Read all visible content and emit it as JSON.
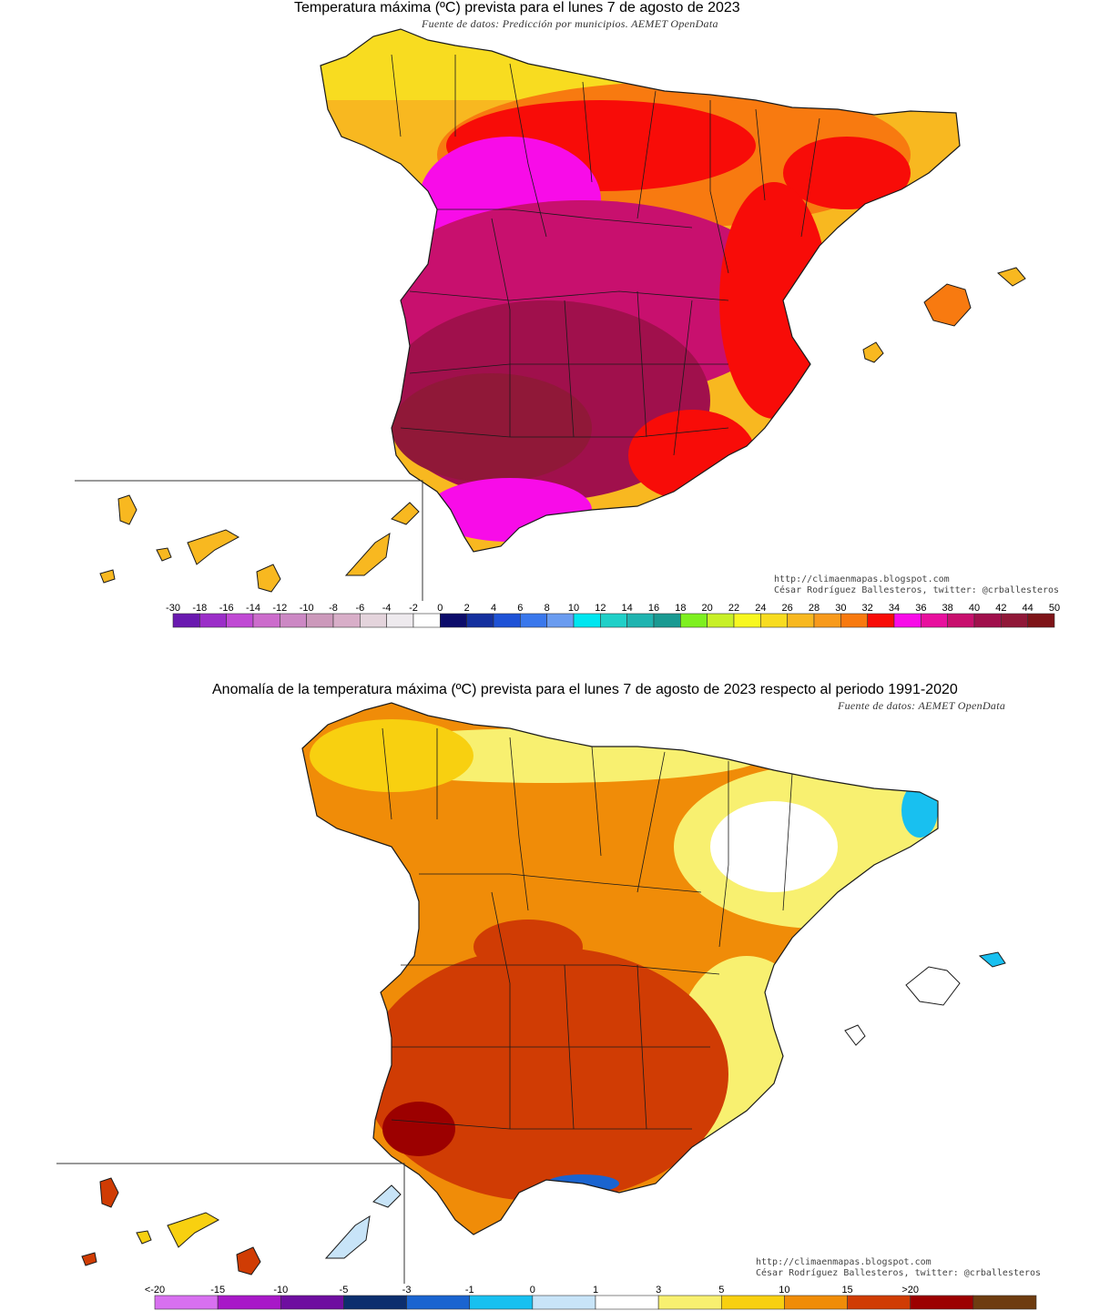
{
  "map1": {
    "title": "Temperatura máxima (ºC) prevista para el lunes 7 de agosto de 2023",
    "subtitle": "Fuente de datos: Predicción por municipios. AEMET OpenData",
    "credit_url": "http://climaenmapas.blogspot.com",
    "credit_author": "César Rodríguez Ballesteros, twitter: @crballesteros",
    "scale": {
      "labels": [
        "-30",
        "-18",
        "-16",
        "-14",
        "-12",
        "-10",
        "-8",
        "-6",
        "-4",
        "-2",
        "0",
        "2",
        "4",
        "6",
        "8",
        "10",
        "12",
        "14",
        "16",
        "18",
        "20",
        "22",
        "24",
        "26",
        "28",
        "30",
        "32",
        "34",
        "36",
        "38",
        "40",
        "42",
        "44",
        "50"
      ],
      "colors": [
        "#6a1ab0",
        "#9b2ec8",
        "#c04ad4",
        "#cc6ccc",
        "#cc88c4",
        "#cc99bb",
        "#d8aec8",
        "#e4d4dc",
        "#eeeaee",
        "#ffffff",
        "#0c0c6a",
        "#14309e",
        "#1e52d6",
        "#3a78ec",
        "#6a9cf0",
        "#00e6f0",
        "#20d0c8",
        "#20b4b0",
        "#1a9a92",
        "#7ef020",
        "#c8f028",
        "#f8f820",
        "#f8dc20",
        "#f8b820",
        "#f89a1c",
        "#f87a10",
        "#f80c08",
        "#f80ce8",
        "#e8109e",
        "#c8106e",
        "#a0104c",
        "#901838",
        "#7e1418"
      ]
    }
  },
  "map2": {
    "title": "Anomalía de la temperatura máxima (ºC) prevista para el lunes 7 de agosto de 2023 respecto al periodo 1991-2020",
    "subtitle": "Fuente de datos: AEMET OpenData",
    "credit_url": "http://climaenmapas.blogspot.com",
    "credit_author": "César Rodríguez Ballesteros, twitter: @crballesteros",
    "scale": {
      "labels": [
        "<-20",
        "-15",
        "-10",
        "-5",
        "-3",
        "-1",
        "0",
        "1",
        "3",
        "5",
        "10",
        "15",
        ">20"
      ],
      "colors": [
        "#d870f0",
        "#a818c8",
        "#6e0ea0",
        "#0c2e6e",
        "#1a64d0",
        "#18c0f0",
        "#c8e4f8",
        "#ffffff",
        "#f8f070",
        "#f8d010",
        "#f08c08",
        "#d03c04",
        "#9c0000",
        "#6e3c10"
      ]
    }
  },
  "colors": {
    "sea": "#ffffff",
    "border": "#1a1a1a"
  }
}
